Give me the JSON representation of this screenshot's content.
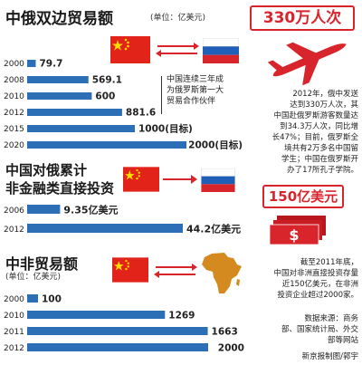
{
  "chart_data": [
    {
      "type": "bar",
      "title": "中俄双边贸易额",
      "unit": "(单位：亿美元)",
      "categories": [
        "2000",
        "2008",
        "2010",
        "2012",
        "2015",
        "2020"
      ],
      "values": [
        79.7,
        569.1,
        600,
        881.6,
        1000,
        2000
      ],
      "value_labels": [
        "79.7",
        "569.1",
        "600",
        "881.6",
        "1000(目标)",
        "2000(目标)"
      ],
      "annotation": [
        "中国连续三年成",
        "为俄罗斯第一大",
        "贸易合作伙伴"
      ],
      "xlim": [
        0,
        2000
      ]
    },
    {
      "type": "bar",
      "title": [
        "中国对俄累计",
        "非金融类直接投资"
      ],
      "categories": [
        "2006",
        "2012"
      ],
      "values": [
        9.35,
        44.2
      ],
      "value_labels": [
        "9.35亿美元",
        "44.2亿美元"
      ],
      "xlim": [
        0,
        44.2
      ]
    },
    {
      "type": "bar",
      "title": "中非贸易额",
      "unit": "(单位：亿美元)",
      "categories": [
        "2000",
        "2010",
        "2011",
        "2012"
      ],
      "values": [
        100,
        1269,
        1663,
        2000
      ],
      "value_labels": [
        "100",
        "1269",
        "1663",
        "2000"
      ],
      "xlim": [
        0,
        2000
      ]
    }
  ],
  "sidebar": {
    "tourists_badge": "330万人次",
    "tourists_text": [
      "2012年，俄中发送",
      "达到330万人次，其",
      "中国赴俄罗斯游客数量达",
      "到34.3万人次，同比增",
      "长47%；目前，俄罗斯全",
      "境共有2万多名中国留",
      "学生；中国在俄罗斯开",
      "办了17所孔子学院。"
    ],
    "invest_badge": "150亿美元",
    "invest_text": [
      "截至2011年底，",
      "中国对非洲直接投资存量",
      "近150亿美元，在非洲",
      "投资企业超过2000家。"
    ],
    "source": [
      "数据来源：商务",
      "部、国家统计局、外交",
      "部等网站"
    ],
    "credit": "新京报制图/郭宇"
  },
  "colors": {
    "bar": "#2c6fb6",
    "bar_dark": "#1f4f88",
    "red": "#d8252c",
    "flag_red": "#e2231a",
    "flag_yellow": "#ffde00",
    "africa": "#d48a1e"
  }
}
